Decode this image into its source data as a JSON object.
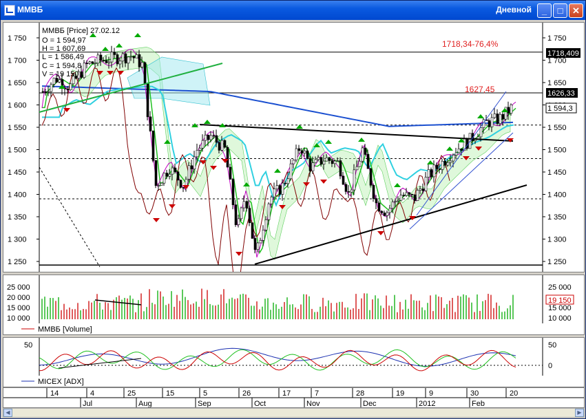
{
  "window": {
    "title": "ММВБ",
    "interval": "Дневной",
    "buttons": {
      "minimize": "_",
      "maximize": "□",
      "close": "✕"
    }
  },
  "price_pane": {
    "header_line": "ММВБ [Price] 27.02.12",
    "ohlc": [
      "O = 1 594,97",
      "H = 1 607,69",
      "L = 1 586,49",
      "C = 1 594,8",
      "V = 19 150"
    ],
    "annotation_high": "1718,34-76,4%",
    "annotation_mid": "1627,45",
    "badge_high": "1718,409",
    "badge_mid": "1626,33",
    "badge_last": "1 594,3",
    "y_ticks": [
      "1 750",
      "1 700",
      "1 650",
      "1 600",
      "1 550",
      "1 500",
      "1 450",
      "1 400",
      "1 350",
      "1 300",
      "1 250"
    ]
  },
  "volume_pane": {
    "legend": "ММВБ [Volume]",
    "left_ticks": [
      "25 000",
      "20 000",
      "15 000",
      "10 000"
    ],
    "right_ticks": [
      "25 000",
      "15 000",
      "10 000"
    ],
    "last_badge": "19 150"
  },
  "adx_pane": {
    "legend": "MICEX [ADX]",
    "left_tick": "50",
    "right_ticks": [
      "50",
      "0"
    ]
  },
  "date_axis": {
    "days": [
      "14",
      "4",
      "25",
      "15",
      "5",
      "26",
      "17",
      "7",
      "28",
      "19",
      "9",
      "30",
      "20"
    ],
    "months": [
      "Jul",
      "Aug",
      "Sep",
      "Oct",
      "Nov",
      "Dec",
      "2012",
      "Feb"
    ]
  },
  "colors": {
    "up": "#00aa00",
    "down": "#cc0000",
    "line_blue": "#1a4fd0",
    "line_cyan": "#30d0e0",
    "line_green": "#20c020",
    "line_magenta": "#c000c0",
    "line_brown": "#800000",
    "annotation_red": "#e02020",
    "titlebar": "#0048d0"
  },
  "chart_data": {
    "type": "line",
    "title": "ММВБ [Price] 27.02.12",
    "xlabel": "",
    "ylabel": "",
    "ylim": [
      1240,
      1775
    ],
    "x": [
      "Jul",
      "Aug",
      "Sep",
      "Oct",
      "Nov",
      "Dec",
      "2012",
      "Feb"
    ],
    "series": [
      {
        "name": "ММВБ [Price]",
        "values": [
          1690,
          1700,
          1420,
          1320,
          1460,
          1390,
          1480,
          1594.8
        ]
      }
    ],
    "annotations": [
      "1718,34-76,4%",
      "1627,45"
    ]
  }
}
